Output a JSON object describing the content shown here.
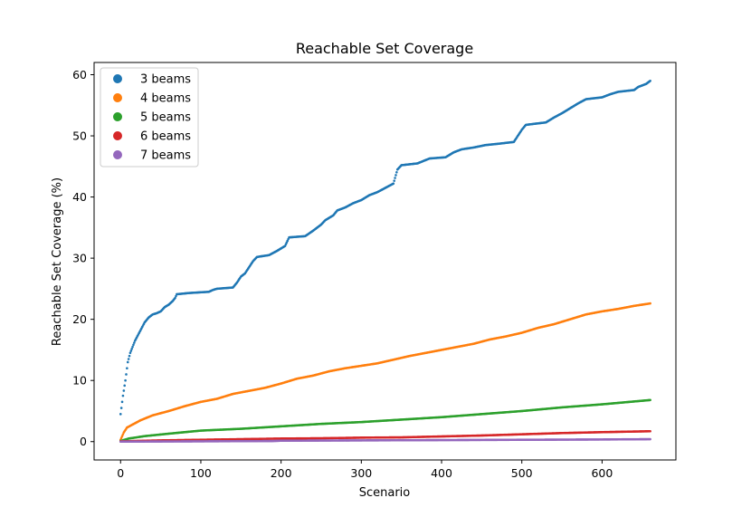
{
  "chart_data": {
    "type": "scatter",
    "title": "Reachable Set Coverage",
    "xlabel": "Scenario",
    "ylabel": "Reachable Set Coverage (%)",
    "xlim": [
      -33,
      692
    ],
    "ylim": [
      -3,
      62
    ],
    "xticks": [
      0,
      100,
      200,
      300,
      400,
      500,
      600
    ],
    "yticks": [
      0,
      10,
      20,
      30,
      40,
      50,
      60
    ],
    "legend_position": "top-left",
    "grid": false,
    "series": [
      {
        "name": "3 beams",
        "color": "#1f77b4",
        "points": [
          [
            0,
            4.5
          ],
          [
            3,
            7.5
          ],
          [
            6,
            10
          ],
          [
            9,
            13
          ],
          [
            12,
            14.5
          ],
          [
            15,
            15.5
          ],
          [
            18,
            16.5
          ],
          [
            22,
            17.5
          ],
          [
            26,
            18.5
          ],
          [
            30,
            19.5
          ],
          [
            35,
            20.3
          ],
          [
            40,
            20.8
          ],
          [
            45,
            21
          ],
          [
            50,
            21.3
          ],
          [
            55,
            22
          ],
          [
            60,
            22.4
          ],
          [
            65,
            23
          ],
          [
            68,
            23.5
          ],
          [
            70,
            24.1
          ],
          [
            85,
            24.3
          ],
          [
            110,
            24.5
          ],
          [
            115,
            24.8
          ],
          [
            120,
            25
          ],
          [
            140,
            25.2
          ],
          [
            145,
            26
          ],
          [
            150,
            27
          ],
          [
            155,
            27.5
          ],
          [
            160,
            28.5
          ],
          [
            165,
            29.5
          ],
          [
            170,
            30.2
          ],
          [
            185,
            30.5
          ],
          [
            195,
            31.2
          ],
          [
            205,
            32
          ],
          [
            210,
            33.4
          ],
          [
            230,
            33.6
          ],
          [
            240,
            34.5
          ],
          [
            250,
            35.5
          ],
          [
            255,
            36.2
          ],
          [
            265,
            37
          ],
          [
            270,
            37.8
          ],
          [
            280,
            38.3
          ],
          [
            290,
            39
          ],
          [
            300,
            39.5
          ],
          [
            310,
            40.3
          ],
          [
            320,
            40.8
          ],
          [
            330,
            41.5
          ],
          [
            340,
            42.2
          ],
          [
            345,
            44.5
          ],
          [
            350,
            45.2
          ],
          [
            370,
            45.5
          ],
          [
            385,
            46.3
          ],
          [
            405,
            46.5
          ],
          [
            415,
            47.3
          ],
          [
            425,
            47.8
          ],
          [
            440,
            48.1
          ],
          [
            455,
            48.5
          ],
          [
            470,
            48.7
          ],
          [
            490,
            49
          ],
          [
            495,
            50
          ],
          [
            500,
            51
          ],
          [
            505,
            51.8
          ],
          [
            530,
            52.2
          ],
          [
            540,
            53
          ],
          [
            550,
            53.7
          ],
          [
            560,
            54.5
          ],
          [
            570,
            55.3
          ],
          [
            580,
            56
          ],
          [
            600,
            56.3
          ],
          [
            610,
            56.8
          ],
          [
            620,
            57.2
          ],
          [
            640,
            57.5
          ],
          [
            645,
            58
          ],
          [
            655,
            58.5
          ],
          [
            660,
            59
          ]
        ]
      },
      {
        "name": "4 beams",
        "color": "#ff7f0e",
        "points": [
          [
            0,
            0.3
          ],
          [
            4,
            1.5
          ],
          [
            8,
            2.3
          ],
          [
            15,
            2.8
          ],
          [
            25,
            3.5
          ],
          [
            40,
            4.3
          ],
          [
            60,
            5
          ],
          [
            80,
            5.8
          ],
          [
            100,
            6.5
          ],
          [
            120,
            7
          ],
          [
            140,
            7.8
          ],
          [
            160,
            8.3
          ],
          [
            180,
            8.8
          ],
          [
            200,
            9.5
          ],
          [
            220,
            10.3
          ],
          [
            240,
            10.8
          ],
          [
            260,
            11.5
          ],
          [
            280,
            12
          ],
          [
            300,
            12.4
          ],
          [
            320,
            12.8
          ],
          [
            340,
            13.4
          ],
          [
            360,
            14
          ],
          [
            380,
            14.5
          ],
          [
            400,
            15
          ],
          [
            420,
            15.5
          ],
          [
            440,
            16
          ],
          [
            460,
            16.7
          ],
          [
            480,
            17.2
          ],
          [
            500,
            17.8
          ],
          [
            520,
            18.6
          ],
          [
            540,
            19.2
          ],
          [
            560,
            20
          ],
          [
            580,
            20.8
          ],
          [
            600,
            21.3
          ],
          [
            620,
            21.7
          ],
          [
            640,
            22.2
          ],
          [
            660,
            22.6
          ]
        ]
      },
      {
        "name": "5 beams",
        "color": "#2ca02c",
        "points": [
          [
            0,
            0.1
          ],
          [
            10,
            0.5
          ],
          [
            30,
            0.9
          ],
          [
            60,
            1.3
          ],
          [
            100,
            1.8
          ],
          [
            150,
            2.1
          ],
          [
            200,
            2.5
          ],
          [
            250,
            2.9
          ],
          [
            300,
            3.2
          ],
          [
            350,
            3.6
          ],
          [
            400,
            4
          ],
          [
            450,
            4.5
          ],
          [
            500,
            5
          ],
          [
            550,
            5.6
          ],
          [
            600,
            6.1
          ],
          [
            660,
            6.8
          ]
        ]
      },
      {
        "name": "6 beams",
        "color": "#d62728",
        "points": [
          [
            0,
            0.05
          ],
          [
            50,
            0.2
          ],
          [
            100,
            0.3
          ],
          [
            150,
            0.4
          ],
          [
            200,
            0.5
          ],
          [
            250,
            0.55
          ],
          [
            300,
            0.65
          ],
          [
            350,
            0.7
          ],
          [
            400,
            0.85
          ],
          [
            450,
            1
          ],
          [
            500,
            1.2
          ],
          [
            550,
            1.4
          ],
          [
            600,
            1.55
          ],
          [
            660,
            1.7
          ]
        ]
      },
      {
        "name": "7 beams",
        "color": "#9467bd",
        "points": [
          [
            0,
            0
          ],
          [
            100,
            0.05
          ],
          [
            190,
            0.1
          ],
          [
            200,
            0.15
          ],
          [
            300,
            0.2
          ],
          [
            400,
            0.25
          ],
          [
            500,
            0.3
          ],
          [
            600,
            0.35
          ],
          [
            660,
            0.4
          ]
        ]
      }
    ]
  }
}
